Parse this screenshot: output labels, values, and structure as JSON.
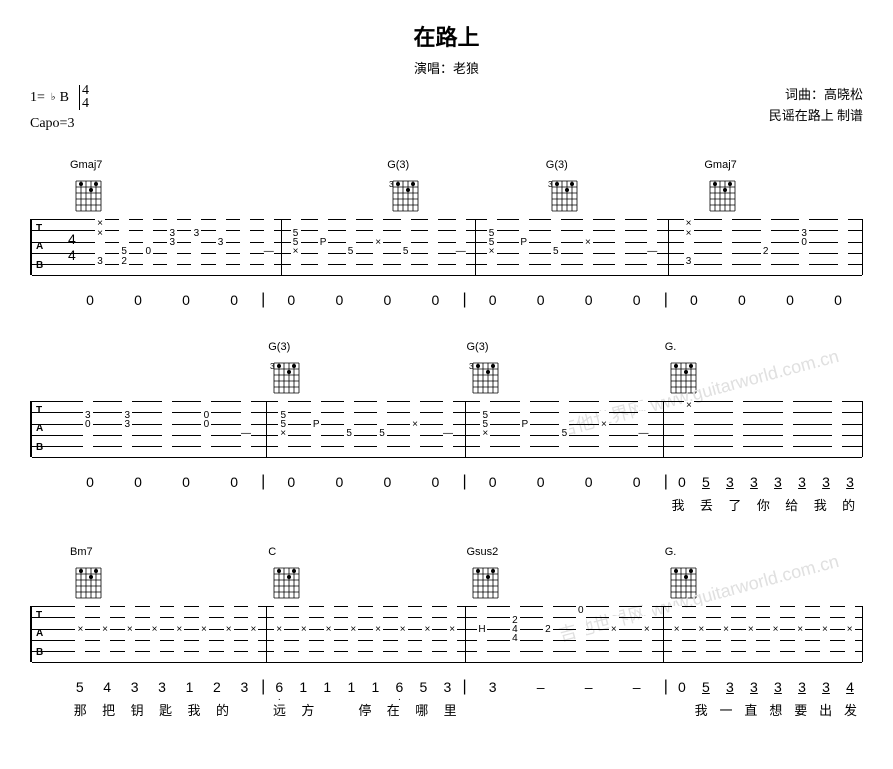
{
  "title": "在路上",
  "singer_label": "演唱：",
  "singer": "老狼",
  "key_prefix": "1=",
  "key_letter": "B",
  "ts_num": "4",
  "ts_den": "4",
  "capo": "Capo=3",
  "composer_label": "词曲：",
  "composer": "高晓松",
  "transcriber": "民谣在路上 制谱",
  "watermark": "吉他世界网 www.guitarworld.com.cn",
  "tab_letters": [
    "T",
    "A",
    "B"
  ],
  "chords": {
    "Gmaj7": "Gmaj7",
    "G3": "G(3)",
    "G": "G.",
    "Bm7": "Bm7",
    "C": "C",
    "Gsus2": "Gsus2"
  },
  "sys1": {
    "chords": [
      "Gmaj7",
      "",
      "G(3)",
      "G(3)",
      "Gmaj7"
    ],
    "tab": [
      [
        [
          "×",
          "×",
          "",
          "",
          "3"
        ],
        [
          "",
          "",
          "",
          "5",
          "2"
        ],
        [
          "",
          "",
          "",
          "0",
          ""
        ],
        [
          "",
          "3",
          "3",
          ""
        ],
        [
          "",
          "3",
          "",
          ""
        ],
        [
          "",
          "",
          "3",
          ""
        ],
        [
          "",
          "",
          "",
          ""
        ],
        [
          "—"
        ]
      ],
      [
        [
          "",
          "5",
          "5",
          "×",
          ""
        ],
        [
          "P"
        ],
        [
          "",
          "",
          "",
          "5",
          ""
        ],
        [
          "×"
        ],
        [
          "",
          "",
          "",
          "5",
          ""
        ],
        [
          "",
          "",
          "",
          ""
        ],
        [
          "—"
        ]
      ],
      [
        [
          "",
          "5",
          "5",
          "×",
          ""
        ],
        [
          "P"
        ],
        [
          "",
          "",
          "",
          "5",
          ""
        ],
        [
          "×"
        ],
        [
          "",
          "",
          "",
          ""
        ],
        [
          "—"
        ]
      ],
      [
        [
          "×",
          "×",
          "",
          "",
          "3"
        ],
        [
          "",
          "",
          "",
          "",
          ""
        ],
        [
          "",
          "",
          "",
          "2",
          ""
        ],
        [
          "",
          "3",
          "0",
          ""
        ],
        [
          "",
          "",
          "",
          ""
        ]
      ]
    ],
    "nums": [
      [
        "0",
        "0",
        "0",
        "0"
      ],
      [
        "0",
        "0",
        "0",
        "0"
      ],
      [
        "0",
        "0",
        "0",
        "0"
      ],
      [
        "0",
        "0",
        "0",
        "0"
      ]
    ]
  },
  "sys2": {
    "chords": [
      "",
      "G(3)",
      "G(3)",
      "G."
    ],
    "tab": [
      [
        [
          "",
          "3",
          "0",
          ""
        ],
        [
          "",
          "3",
          "3",
          ""
        ],
        [
          "",
          "",
          "",
          ""
        ],
        [
          "",
          "0",
          "0",
          ""
        ],
        [
          "—"
        ]
      ],
      [
        [
          "",
          "5",
          "5",
          "×",
          ""
        ],
        [
          "P"
        ],
        [
          "",
          "",
          "",
          "5",
          ""
        ],
        [
          "",
          "",
          "",
          "5"
        ],
        [
          "×"
        ],
        [
          "—"
        ]
      ],
      [
        [
          "",
          "5",
          "5",
          "×",
          ""
        ],
        [
          "P"
        ],
        [
          "",
          "",
          "",
          "5",
          ""
        ],
        [
          "×"
        ],
        [
          "—"
        ]
      ],
      [
        [
          "×",
          "",
          "",
          ""
        ],
        [
          "",
          "",
          "",
          ""
        ],
        [
          "",
          "",
          "",
          ""
        ],
        [
          "",
          "",
          "",
          ""
        ]
      ]
    ],
    "nums": [
      [
        "0",
        "0",
        "0",
        "0"
      ],
      [
        "0",
        "0",
        "0",
        "0"
      ],
      [
        "0",
        "0",
        "0",
        "0"
      ],
      [
        "0",
        "5",
        "3",
        "3",
        "3",
        "3",
        "3",
        "3"
      ]
    ],
    "lyrics": [
      "",
      "",
      "",
      "",
      "我",
      "丢",
      "了",
      "你",
      "给",
      "我",
      "的"
    ]
  },
  "sys3": {
    "chords": [
      "Bm7",
      "C",
      "Gsus2",
      "G."
    ],
    "tab": [
      [
        [
          "×"
        ],
        [
          "×"
        ],
        [
          "×"
        ],
        [
          "×"
        ],
        [
          "×"
        ],
        [
          "×"
        ],
        [
          "×"
        ],
        [
          "×"
        ]
      ],
      [
        [
          "×"
        ],
        [
          "×"
        ],
        [
          "×"
        ],
        [
          "×"
        ],
        [
          "×"
        ],
        [
          "×"
        ],
        [
          "×"
        ],
        [
          "×"
        ]
      ],
      [
        [
          "H"
        ],
        [
          "",
          "2",
          "4",
          "4"
        ],
        [
          "",
          "",
          "2"
        ],
        [
          "0"
        ],
        [
          "×"
        ],
        [
          "×"
        ]
      ],
      [
        [
          "×"
        ],
        [
          "×"
        ],
        [
          "×"
        ],
        [
          "×"
        ],
        [
          "×"
        ],
        [
          "×"
        ],
        [
          "×"
        ],
        [
          "×"
        ]
      ]
    ],
    "nums": [
      [
        "5",
        "4",
        "3",
        "3",
        "1",
        "2",
        "3"
      ],
      [
        "6",
        "1",
        "1",
        "1",
        "1",
        "6",
        "5",
        "3"
      ],
      [
        "3",
        "–",
        "–",
        "–"
      ],
      [
        "0",
        "5",
        "3",
        "3",
        "3",
        "3",
        "3",
        "4"
      ]
    ],
    "lyrics": [
      [
        "那",
        "把",
        "钥",
        "匙",
        "我",
        "的",
        ""
      ],
      [
        "远",
        "方",
        "",
        "停",
        "在",
        "哪",
        "里"
      ],
      [
        "",
        "",
        "",
        ""
      ],
      [
        "",
        "我",
        "一",
        "直",
        "想",
        "要",
        "出",
        "发"
      ]
    ]
  }
}
